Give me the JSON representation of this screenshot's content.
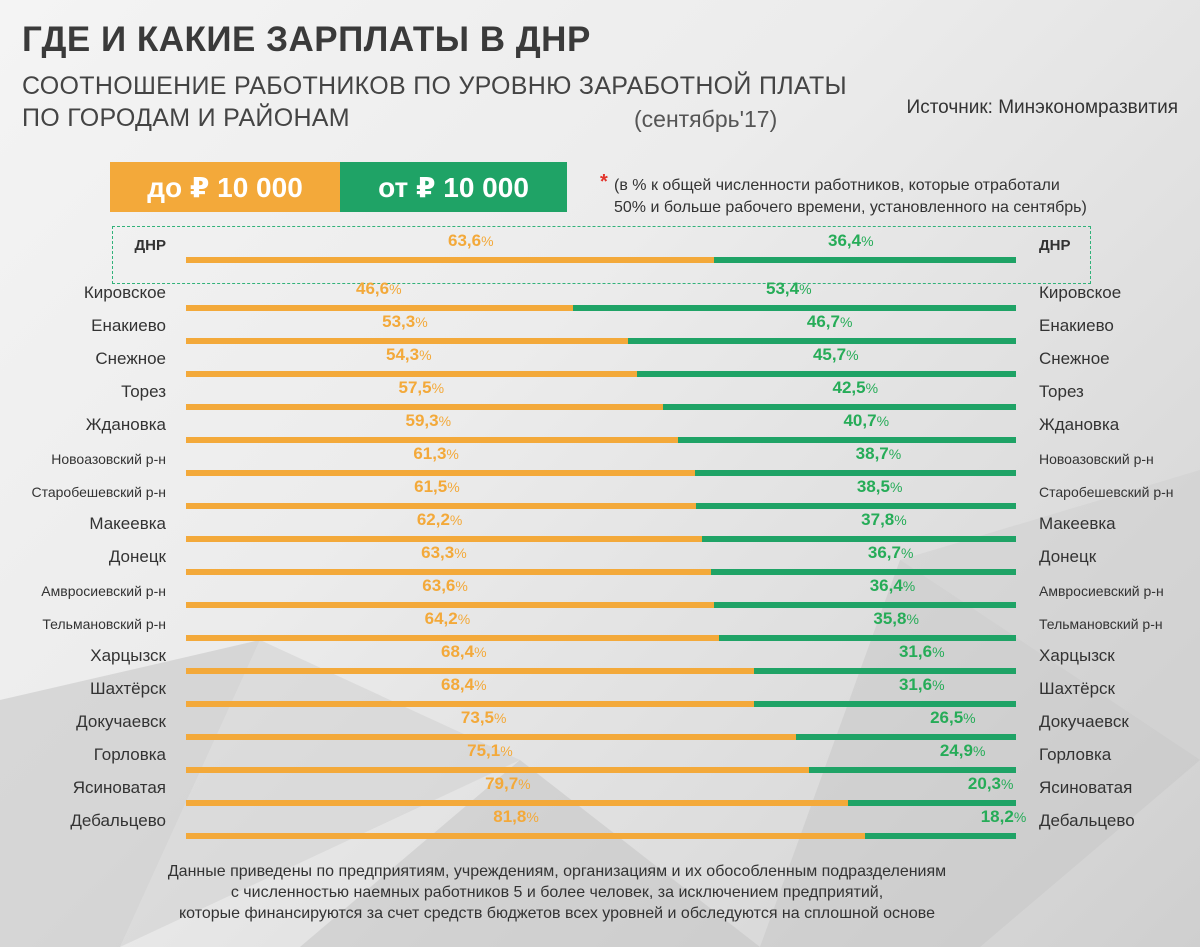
{
  "title": "ГДЕ И КАКИЕ ЗАРПЛАТЫ В ДНР",
  "subtitle_line1": "СООТНОШЕНИЕ РАБОТНИКОВ ПО УРОВНЮ ЗАРАБОТНОЙ ПЛАТЫ",
  "subtitle_line2": "ПО ГОРОДАМ И РАЙОНАМ",
  "period": "(сентябрь'17)",
  "source": "Источник: Минэкономразвития",
  "legend": {
    "low_label": "до ₽ 10 000",
    "high_label": "от ₽ 10 000"
  },
  "note_star": "*",
  "note_line1": "(в % к общей численности работников, которые отработали",
  "note_line2": "50% и больше рабочего времени, установленного на сентябрь)",
  "footer_lines": [
    "Данные приведены по предприятиям, учреждениям, организациям и их обособленным подразделениям",
    "с численностью наемных работников 5 и более человек, за исключением предприятий,",
    "которые финансируются за счет средств  бюджетов всех уровней и обследуются на сплошной основе"
  ],
  "colors": {
    "low": "#f3a93a",
    "high": "#1fa366"
  },
  "chart_data": {
    "type": "bar",
    "orientation": "horizontal-stacked-100",
    "series": [
      {
        "name": "до ₽ 10 000",
        "values": [
          63.6,
          46.6,
          53.3,
          54.3,
          57.5,
          59.3,
          61.3,
          61.5,
          62.2,
          63.3,
          63.6,
          64.2,
          68.4,
          68.4,
          73.5,
          75.1,
          79.7,
          81.8
        ]
      },
      {
        "name": "от ₽ 10 000",
        "values": [
          36.4,
          53.4,
          46.7,
          45.7,
          42.5,
          40.7,
          38.7,
          38.5,
          37.8,
          36.7,
          36.4,
          35.8,
          31.6,
          31.6,
          26.5,
          24.9,
          20.3,
          18.2
        ]
      }
    ],
    "categories": [
      "ДНР",
      "Кировское",
      "Енакиево",
      "Снежное",
      "Торез",
      "Жд­ановка",
      "Новоазовский р-н",
      "Старобешевский р-н",
      "Макеевка",
      "Донецк",
      "Амвросиевский р-н",
      "Тельмановский р-н",
      "Харцызск",
      "Шахтёрск",
      "Докучаевск",
      "Горловка",
      "Ясиноватая",
      "Дебальцево"
    ],
    "value_labels_low": [
      "63,6",
      "46,6",
      "53,3",
      "54,3",
      "57,5",
      "59,3",
      "61,3",
      "61,5",
      "62,2",
      "63,3",
      "63,6",
      "64,2",
      "68,4",
      "68,4",
      "73,5",
      "75,1",
      "79,7",
      "81,8"
    ],
    "value_labels_high": [
      "36,4",
      "53,4",
      "46,7",
      "45,7",
      "42,5",
      "40,7",
      "38,7",
      "38,5",
      "37,8",
      "36,7",
      "36,4",
      "35,8",
      "31,6",
      "31,6",
      "26,5",
      "24,9",
      "20,3",
      "18,2"
    ],
    "unit": "%",
    "xlim": [
      0,
      100
    ]
  }
}
